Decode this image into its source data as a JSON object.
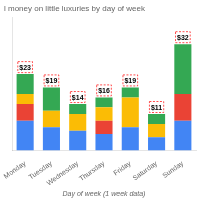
{
  "chart_data": {
    "type": "bar",
    "stacked": true,
    "title": "l money on little luxuries by day of week",
    "xlabel": "Day of week (1 week data)",
    "categories": [
      "Monday",
      "Tuesday",
      "Wednesday",
      "Thursday",
      "Friday",
      "Saturday",
      "Sunday"
    ],
    "series": [
      {
        "color": "#4285F4",
        "values": [
          9,
          7,
          6,
          5,
          7,
          4,
          9
        ]
      },
      {
        "color": "#EA4335",
        "values": [
          5,
          0,
          0,
          4,
          0,
          0,
          8
        ]
      },
      {
        "color": "#FBBC05",
        "values": [
          3,
          5,
          5,
          4,
          9,
          4,
          0
        ]
      },
      {
        "color": "#34A853",
        "values": [
          6,
          7,
          3,
          3,
          3,
          3,
          15
        ]
      }
    ],
    "ylim": [
      0,
      40
    ],
    "yticks": [],
    "grid": false,
    "tick_labels": "x",
    "annotations": [
      {
        "x": "Monday",
        "y": 23,
        "text": "$23"
      },
      {
        "x": "Tuesday",
        "y": 19,
        "text": "$19"
      },
      {
        "x": "Wednesday",
        "y": 14,
        "text": "$14"
      },
      {
        "x": "Thursday",
        "y": 16,
        "text": "$16"
      },
      {
        "x": "Friday",
        "y": 19,
        "text": "$19"
      },
      {
        "x": "Saturday",
        "y": 11,
        "text": "$11"
      },
      {
        "x": "Sunday",
        "y": 32,
        "text": "$32"
      }
    ]
  }
}
